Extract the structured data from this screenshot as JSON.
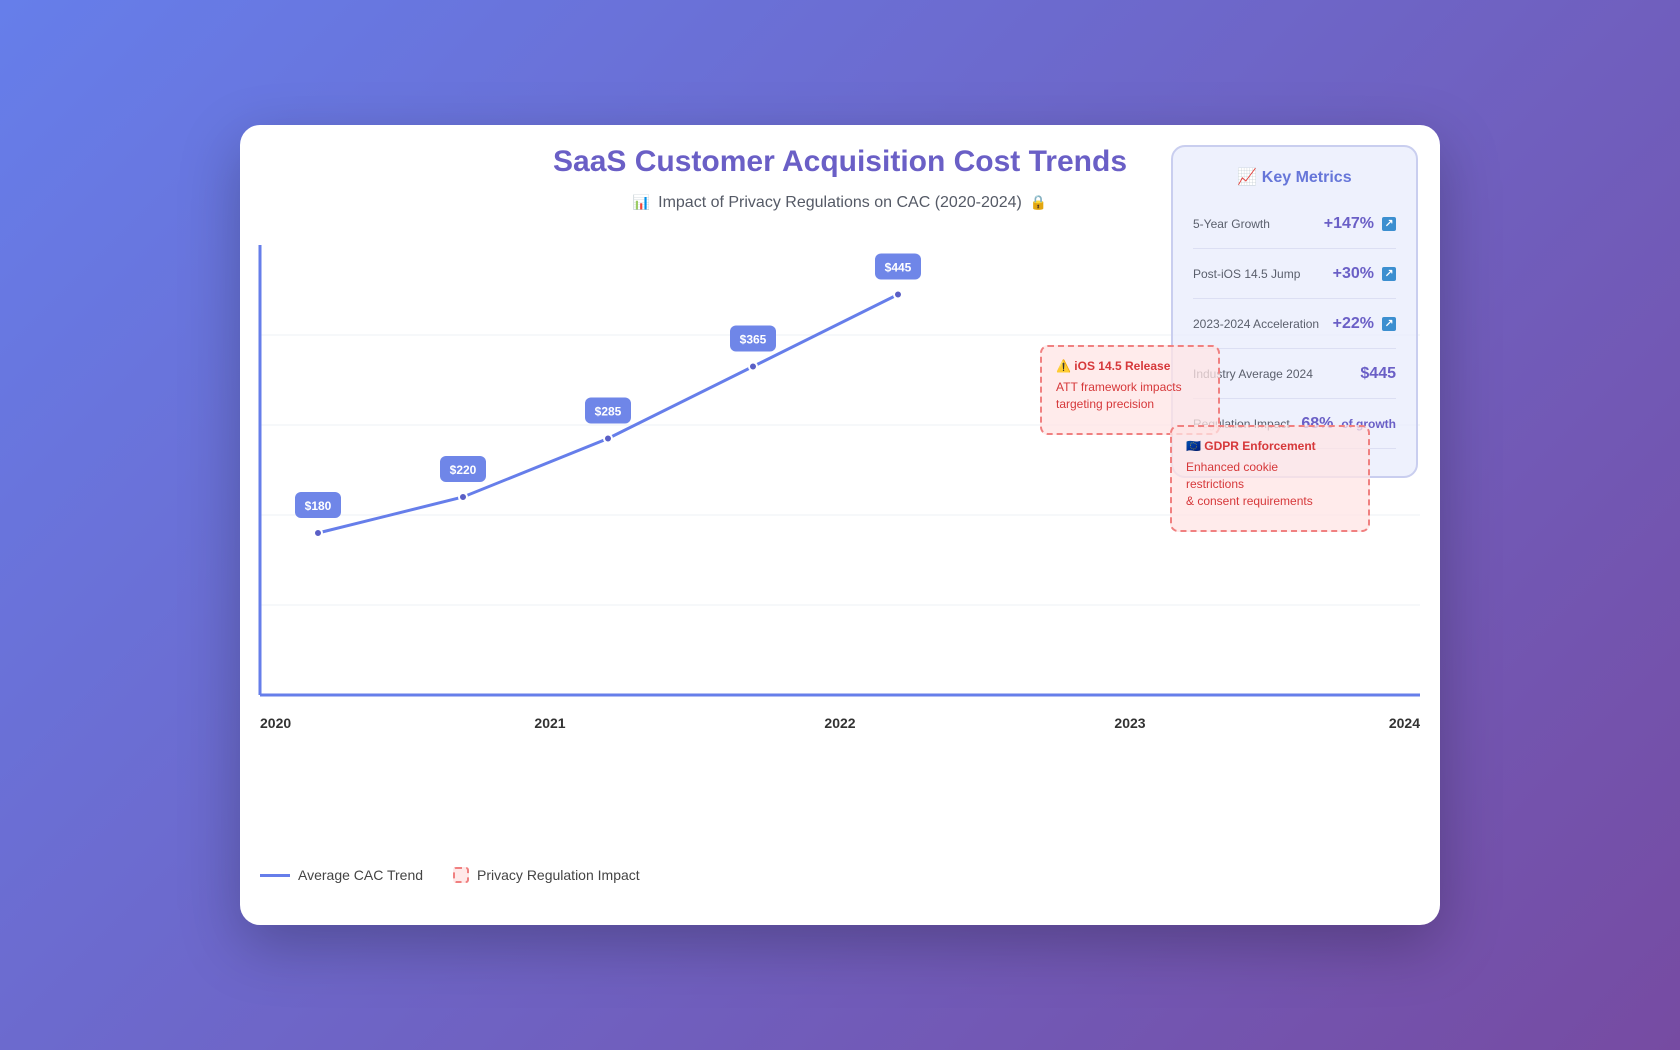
{
  "header": {
    "title": "SaaS Customer Acquisition Cost Trends",
    "subtitle": "Impact of Privacy Regulations on CAC (2020-2024)",
    "subtitle_icon_left": "📊",
    "subtitle_icon_right": "🔒"
  },
  "chart_data": {
    "type": "line",
    "title": "SaaS Customer Acquisition Cost Trends",
    "subtitle": "Impact of Privacy Regulations on CAC (2020-2024)",
    "x_tick_labels": [
      "2020",
      "2021",
      "2022",
      "2023",
      "2024"
    ],
    "xlim": [
      2020,
      2024
    ],
    "ylim": [
      0,
      500
    ],
    "grid": true,
    "series": [
      {
        "name": "Average CAC Trend",
        "color": "#667eea",
        "x": [
          2020.2,
          2020.7,
          2021.2,
          2021.7,
          2022.2
        ],
        "values": [
          180,
          220,
          285,
          365,
          445
        ],
        "labels": [
          "$180",
          "$220",
          "$285",
          "$365",
          "$445"
        ]
      }
    ],
    "annotations": [
      {
        "icon": "⚠️",
        "title": "iOS 14.5 Release",
        "text": "ATT framework impacts\ntargeting precision"
      },
      {
        "icon": "🇪🇺",
        "title": "GDPR Enforcement",
        "text": "Enhanced cookie\nrestrictions\n& consent requirements"
      }
    ],
    "legend": [
      {
        "label": "Average CAC Trend",
        "kind": "line",
        "color": "#667eea"
      },
      {
        "label": "Privacy Regulation Impact",
        "kind": "dashed-box",
        "color": "#f08080"
      }
    ],
    "legend_position": "bottom-left"
  },
  "metrics": {
    "title": "Key Metrics",
    "title_icon": "📈",
    "items": [
      {
        "label": "5-Year Growth",
        "value": "+147%",
        "icon": "↗"
      },
      {
        "label": "Post-iOS 14.5 Jump",
        "value": "+30%",
        "icon": "↗"
      },
      {
        "label": "2023-2024 Acceleration",
        "value": "+22%",
        "icon": "↗"
      },
      {
        "label": "Industry Average 2024",
        "value": "$445",
        "icon": ""
      },
      {
        "label": "Regulation Impact",
        "value": "68%",
        "suffix": "of growth",
        "icon": ""
      }
    ]
  },
  "colors": {
    "accent": "#667eea",
    "title": "#6a5fc6",
    "annotation": "#d6383a"
  }
}
